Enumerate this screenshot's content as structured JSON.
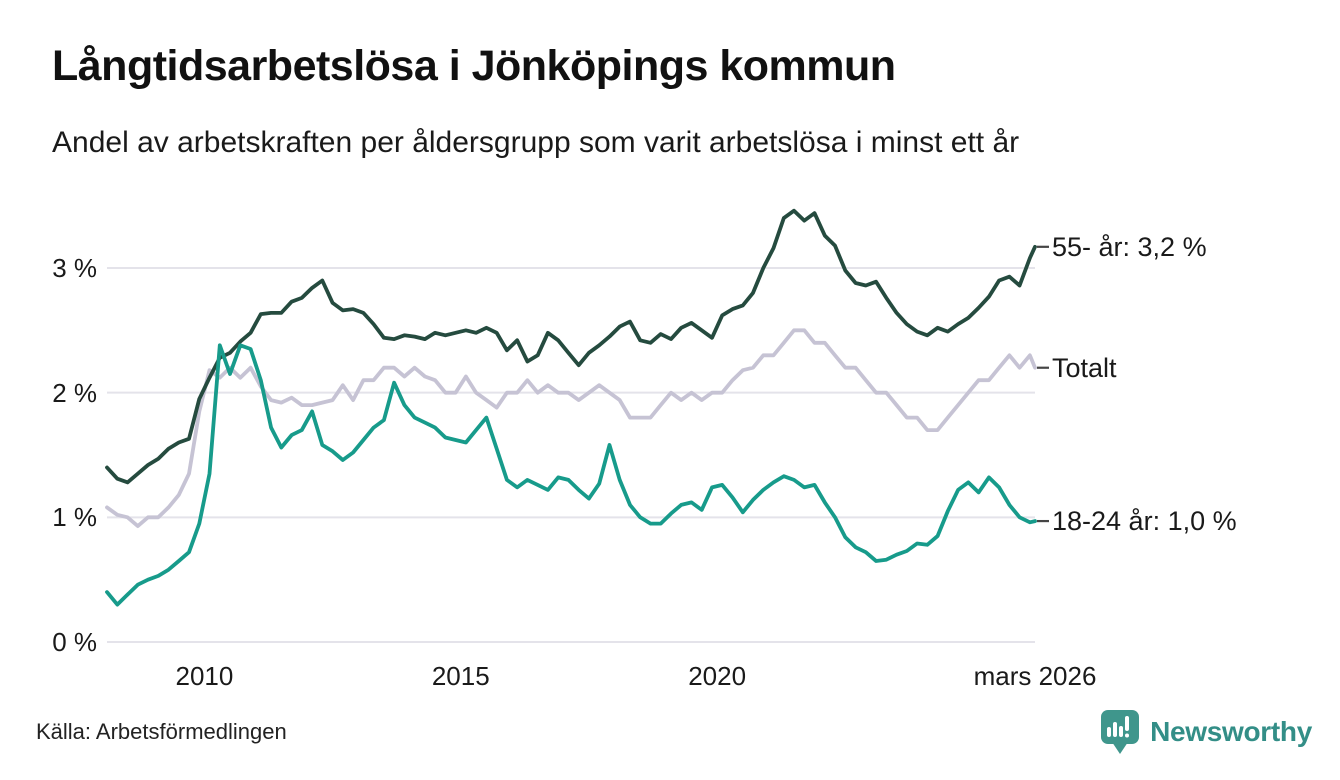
{
  "header": {
    "title": "Långtidsarbetslösa i Jönköpings kommun",
    "subtitle": "Andel av arbetskraften per åldersgrupp som varit arbetslösa i minst ett år"
  },
  "footer": {
    "source": "Källa: Arbetsförmedlingen",
    "brand": "Newsworthy"
  },
  "colors": {
    "series_55": "#254b3f",
    "series_total": "#c6c3d4",
    "series_1824": "#179b8b",
    "grid": "#e4e3ea",
    "end_dash": "#454545",
    "brand_icon": "#3f968c",
    "brand_text": "#338e87",
    "text": "#1a1a1a"
  },
  "chart_data": {
    "type": "line",
    "title": "Långtidsarbetslösa i Jönköpings kommun",
    "subtitle": "Andel av arbetskraften per åldersgrupp som varit arbetslösa i minst ett år",
    "xlabel": "",
    "ylabel": "",
    "x_unit": "year",
    "xlim": [
      2008.1,
      2026.2
    ],
    "ylim": [
      0,
      3.6
    ],
    "grid": true,
    "legend_position": "right-end-labels",
    "xticks": [
      {
        "label": "2010",
        "year": 2010
      },
      {
        "label": "2015",
        "year": 2015
      },
      {
        "label": "2020",
        "year": 2020
      },
      {
        "label": "mars 2026",
        "year": 2026.2
      }
    ],
    "yticks": [
      {
        "label": "0 %",
        "value": 0
      },
      {
        "label": "1 %",
        "value": 1
      },
      {
        "label": "2 %",
        "value": 2
      },
      {
        "label": "3 %",
        "value": 3
      }
    ],
    "x": [
      2008.1,
      2008.3,
      2008.5,
      2008.7,
      2008.9,
      2009.1,
      2009.3,
      2009.5,
      2009.7,
      2009.9,
      2010.1,
      2010.3,
      2010.5,
      2010.7,
      2010.9,
      2011.1,
      2011.3,
      2011.5,
      2011.7,
      2011.9,
      2012.1,
      2012.3,
      2012.5,
      2012.7,
      2012.9,
      2013.1,
      2013.3,
      2013.5,
      2013.7,
      2013.9,
      2014.1,
      2014.3,
      2014.5,
      2014.7,
      2014.9,
      2015.1,
      2015.3,
      2015.5,
      2015.7,
      2015.9,
      2016.1,
      2016.3,
      2016.5,
      2016.7,
      2016.9,
      2017.1,
      2017.3,
      2017.5,
      2017.7,
      2017.9,
      2018.1,
      2018.3,
      2018.5,
      2018.7,
      2018.9,
      2019.1,
      2019.3,
      2019.5,
      2019.7,
      2019.9,
      2020.1,
      2020.3,
      2020.5,
      2020.7,
      2020.9,
      2021.1,
      2021.3,
      2021.5,
      2021.7,
      2021.9,
      2022.1,
      2022.3,
      2022.5,
      2022.7,
      2022.9,
      2023.1,
      2023.3,
      2023.5,
      2023.7,
      2023.9,
      2024.1,
      2024.3,
      2024.5,
      2024.7,
      2024.9,
      2025.1,
      2025.3,
      2025.5,
      2025.7,
      2025.9,
      2026.1,
      2026.2
    ],
    "series": [
      {
        "name": "55- år",
        "end_label": "55- år: 3,2 %",
        "last_value_label": "3,2 %",
        "color": "#254b3f",
        "draw_order": 2,
        "values": [
          1.4,
          1.31,
          1.28,
          1.35,
          1.42,
          1.47,
          1.55,
          1.6,
          1.63,
          1.95,
          2.12,
          2.28,
          2.32,
          2.41,
          2.48,
          2.63,
          2.64,
          2.64,
          2.73,
          2.76,
          2.84,
          2.9,
          2.72,
          2.66,
          2.67,
          2.64,
          2.55,
          2.44,
          2.43,
          2.46,
          2.45,
          2.43,
          2.48,
          2.46,
          2.48,
          2.5,
          2.48,
          2.52,
          2.48,
          2.34,
          2.42,
          2.25,
          2.3,
          2.48,
          2.42,
          2.32,
          2.22,
          2.32,
          2.38,
          2.45,
          2.53,
          2.57,
          2.42,
          2.4,
          2.47,
          2.43,
          2.52,
          2.56,
          2.5,
          2.44,
          2.62,
          2.67,
          2.7,
          2.8,
          3.0,
          3.16,
          3.4,
          3.46,
          3.38,
          3.44,
          3.26,
          3.18,
          2.98,
          2.88,
          2.86,
          2.89,
          2.76,
          2.64,
          2.55,
          2.49,
          2.46,
          2.52,
          2.49,
          2.55,
          2.6,
          2.68,
          2.77,
          2.9,
          2.93,
          2.86,
          3.08,
          3.17
        ]
      },
      {
        "name": "Totalt",
        "end_label": "Totalt",
        "last_value_label": "",
        "color": "#c6c3d4",
        "draw_order": 1,
        "values": [
          1.08,
          1.02,
          1.0,
          0.93,
          1.0,
          1.0,
          1.08,
          1.18,
          1.35,
          1.85,
          2.18,
          2.12,
          2.2,
          2.12,
          2.2,
          2.05,
          1.94,
          1.92,
          1.96,
          1.9,
          1.9,
          1.92,
          1.94,
          2.06,
          1.94,
          2.1,
          2.1,
          2.2,
          2.2,
          2.13,
          2.2,
          2.13,
          2.1,
          2.0,
          2.0,
          2.13,
          2.0,
          1.94,
          1.88,
          2.0,
          2.0,
          2.1,
          2.0,
          2.06,
          2.0,
          2.0,
          1.94,
          2.0,
          2.06,
          2.0,
          1.94,
          1.8,
          1.8,
          1.8,
          1.9,
          2.0,
          1.94,
          2.0,
          1.94,
          2.0,
          2.0,
          2.1,
          2.18,
          2.2,
          2.3,
          2.3,
          2.4,
          2.5,
          2.5,
          2.4,
          2.4,
          2.3,
          2.2,
          2.2,
          2.1,
          2.0,
          2.0,
          1.9,
          1.8,
          1.8,
          1.7,
          1.7,
          1.8,
          1.9,
          2.0,
          2.1,
          2.1,
          2.2,
          2.3,
          2.2,
          2.3,
          2.2
        ]
      },
      {
        "name": "18-24 år",
        "end_label": "18-24 år: 1,0 %",
        "last_value_label": "1,0 %",
        "color": "#179b8b",
        "draw_order": 3,
        "values": [
          0.4,
          0.3,
          0.38,
          0.46,
          0.5,
          0.53,
          0.58,
          0.65,
          0.72,
          0.95,
          1.35,
          2.38,
          2.15,
          2.38,
          2.35,
          2.1,
          1.72,
          1.56,
          1.66,
          1.7,
          1.85,
          1.58,
          1.53,
          1.46,
          1.52,
          1.62,
          1.72,
          1.78,
          2.08,
          1.9,
          1.8,
          1.76,
          1.72,
          1.64,
          1.62,
          1.6,
          1.7,
          1.8,
          1.55,
          1.3,
          1.24,
          1.3,
          1.26,
          1.22,
          1.32,
          1.3,
          1.22,
          1.15,
          1.27,
          1.58,
          1.3,
          1.1,
          1.0,
          0.95,
          0.95,
          1.03,
          1.1,
          1.12,
          1.06,
          1.24,
          1.26,
          1.16,
          1.04,
          1.14,
          1.22,
          1.28,
          1.33,
          1.3,
          1.24,
          1.26,
          1.12,
          1.0,
          0.84,
          0.76,
          0.72,
          0.65,
          0.66,
          0.7,
          0.73,
          0.79,
          0.78,
          0.85,
          1.05,
          1.22,
          1.28,
          1.2,
          1.32,
          1.24,
          1.1,
          1.0,
          0.96,
          0.97
        ]
      }
    ]
  }
}
